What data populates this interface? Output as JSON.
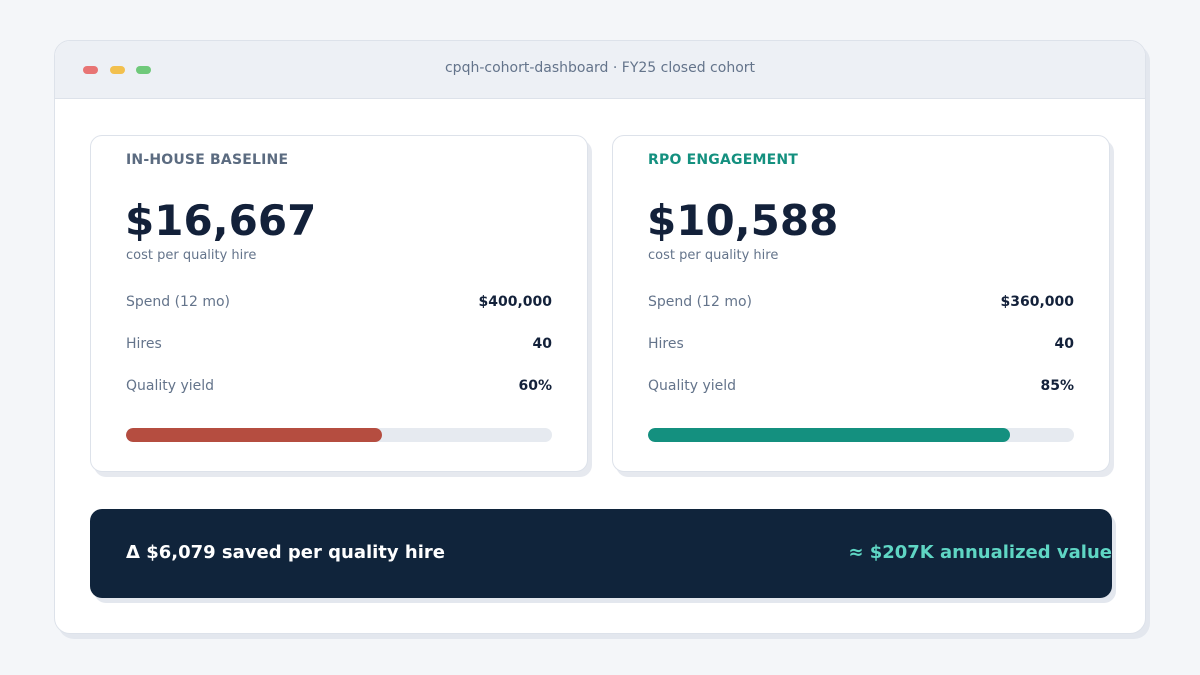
{
  "window": {
    "title": "cpqh-cohort-dashboard  ·  FY25 closed cohort"
  },
  "cards": [
    {
      "label": "IN-HOUSE BASELINE",
      "value": "$16,667",
      "sublabel": "cost per quality hire",
      "rows": [
        {
          "key": "Spend (12 mo)",
          "value": "$400,000"
        },
        {
          "key": "Hires",
          "value": "40"
        },
        {
          "key": "Quality yield",
          "value": "60%"
        }
      ],
      "yield_fraction": 0.6,
      "accent": "#b54d40"
    },
    {
      "label": "RPO ENGAGEMENT",
      "value": "$10,588",
      "sublabel": "cost per quality hire",
      "rows": [
        {
          "key": "Spend (12 mo)",
          "value": "$360,000"
        },
        {
          "key": "Hires",
          "value": "40"
        },
        {
          "key": "Quality yield",
          "value": "85%"
        }
      ],
      "yield_fraction": 0.85,
      "accent": "#14907f"
    }
  ],
  "banner": {
    "delta": "Δ  $6,079 saved per quality hire",
    "annualized": "≈ $207K annualized value"
  }
}
